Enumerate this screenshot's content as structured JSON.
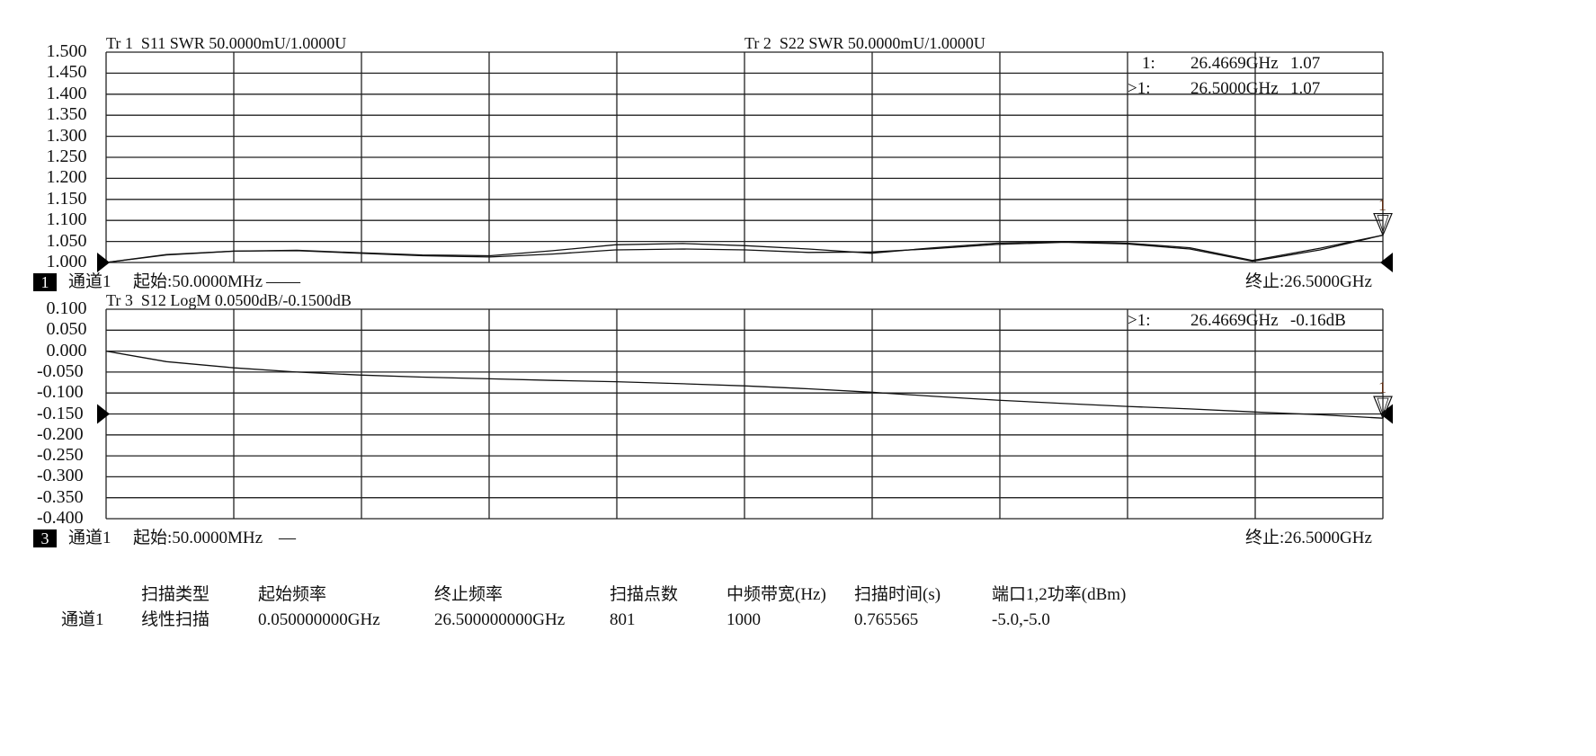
{
  "chart_data": [
    {
      "type": "line",
      "trace_labels": [
        "Tr 1  S11 SWR 50.0000mU/1.0000U",
        "Tr 2  S22 SWR 50.0000mU/1.0000U"
      ],
      "xlim": [
        0.05,
        26.5
      ],
      "ylim": [
        1.0,
        1.5
      ],
      "ytick_labels": [
        "1.500",
        "1.450",
        "1.400",
        "1.350",
        "1.300",
        "1.250",
        "1.200",
        "1.150",
        "1.100",
        "1.050",
        "1.000"
      ],
      "grid": true,
      "reference_level": 1.0,
      "series": [
        {
          "x": [
            0.05,
            1.3,
            2.7,
            4.0,
            5.3,
            6.6,
            8.0,
            9.3,
            10.6,
            12.0,
            13.3,
            14.6,
            15.9,
            17.2,
            18.5,
            19.9,
            21.2,
            22.5,
            23.8,
            25.2,
            26.5
          ],
          "y": [
            1.0,
            1.018,
            1.027,
            1.028,
            1.022,
            1.016,
            1.013,
            1.02,
            1.03,
            1.032,
            1.03,
            1.024,
            1.025,
            1.033,
            1.043,
            1.048,
            1.044,
            1.032,
            1.003,
            1.03,
            1.065
          ]
        },
        {
          "x": [
            0.05,
            1.3,
            2.7,
            4.0,
            5.3,
            6.6,
            8.0,
            9.3,
            10.6,
            12.0,
            13.3,
            14.6,
            15.9,
            17.2,
            18.5,
            19.9,
            21.2,
            22.5,
            23.8,
            25.2,
            26.5
          ],
          "y": [
            1.0,
            1.019,
            1.027,
            1.029,
            1.023,
            1.018,
            1.016,
            1.028,
            1.042,
            1.045,
            1.04,
            1.032,
            1.022,
            1.035,
            1.046,
            1.05,
            1.046,
            1.035,
            1.005,
            1.034,
            1.065
          ]
        }
      ],
      "markers": [
        {
          "label": "1:",
          "freq": "26.4669GHz",
          "value": "1.07",
          "active": false
        },
        {
          "label": ">1:",
          "freq": "26.5000GHz",
          "value": "1.07",
          "active": true
        }
      ],
      "marker_number": "1",
      "channel_badge": "1",
      "channel_label": "通道1",
      "start_label": "起始:50.0000MHz",
      "start_suffix": "——",
      "stop_label": "终止:26.5000GHz"
    },
    {
      "type": "line",
      "trace_labels": [
        "Tr 3  S12 LogM 0.0500dB/-0.1500dB"
      ],
      "xlim": [
        0.05,
        26.5
      ],
      "ylim": [
        -0.4,
        0.1
      ],
      "ytick_labels": [
        "0.100",
        "0.050",
        "0.000",
        "-0.050",
        "-0.100",
        "-0.150",
        "-0.200",
        "-0.250",
        "-0.300",
        "-0.350",
        "-0.400"
      ],
      "grid": true,
      "reference_level": -0.15,
      "series": [
        {
          "x": [
            0.05,
            1.3,
            2.7,
            4.0,
            5.3,
            6.6,
            8.0,
            9.3,
            10.6,
            12.0,
            13.3,
            14.6,
            15.9,
            17.2,
            18.5,
            19.9,
            21.2,
            22.5,
            23.8,
            25.2,
            26.5
          ],
          "y": [
            0.0,
            -0.025,
            -0.04,
            -0.05,
            -0.057,
            -0.062,
            -0.066,
            -0.07,
            -0.073,
            -0.078,
            -0.083,
            -0.09,
            -0.098,
            -0.108,
            -0.117,
            -0.125,
            -0.132,
            -0.138,
            -0.145,
            -0.152,
            -0.16
          ]
        }
      ],
      "markers": [
        {
          "label": ">1:",
          "freq": "26.4669GHz",
          "value": "-0.16dB",
          "active": true
        }
      ],
      "marker_number": "1",
      "channel_badge": "3",
      "channel_label": "通道1",
      "start_label": "起始:50.0000MHz",
      "start_suffix": "—",
      "stop_label": "终止:26.5000GHz"
    }
  ],
  "sweep_table": {
    "headers": [
      "扫描类型",
      "起始频率",
      "终止频率",
      "扫描点数",
      "中频带宽(Hz)",
      "扫描时间(s)",
      "端口1,2功率(dBm)"
    ],
    "row_label": "通道1",
    "values": [
      "线性扫描",
      "0.050000000GHz",
      "26.500000000GHz",
      "801",
      "1000",
      "0.765565",
      "-5.0,-5.0"
    ]
  },
  "colors": {
    "trace": "#111111",
    "grid": "#222222",
    "background": "#ffffff"
  }
}
